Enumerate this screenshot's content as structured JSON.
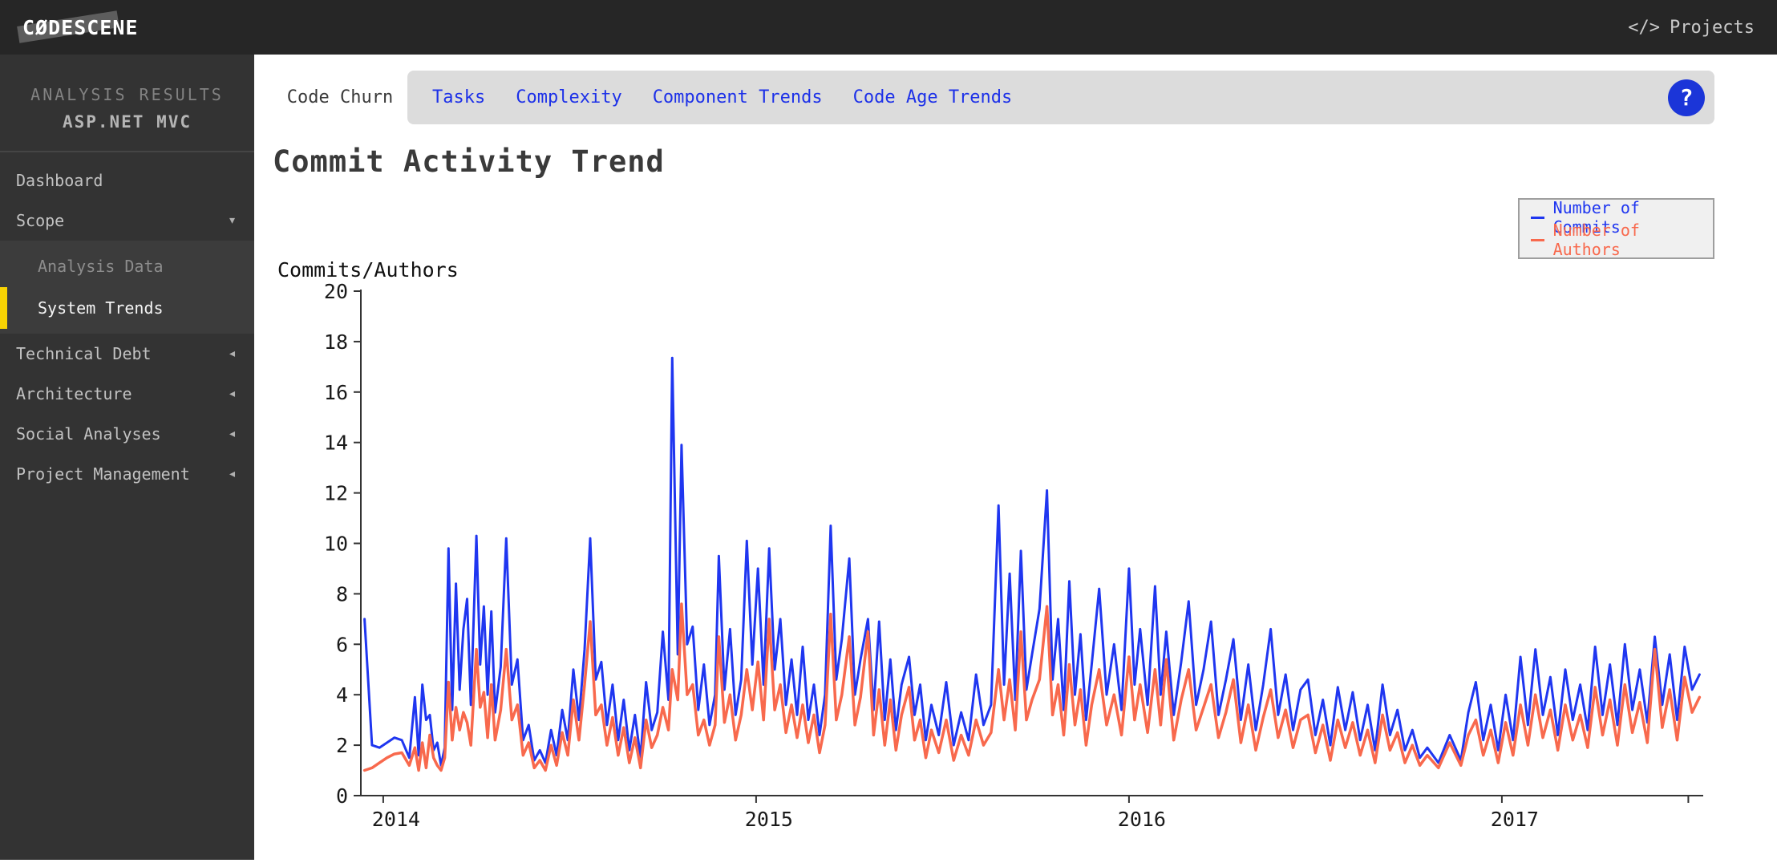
{
  "topbar": {
    "logo": "CØDESCENE",
    "projects_icon": "</>",
    "projects_label": "Projects"
  },
  "sidebar": {
    "section_label": "ANALYSIS RESULTS",
    "project_name": "ASP.NET MVC",
    "items": [
      {
        "label": "Dashboard"
      },
      {
        "label": "Scope",
        "state": "expanded",
        "children": [
          {
            "label": "Analysis Data"
          },
          {
            "label": "System Trends",
            "active": true
          }
        ]
      },
      {
        "label": "Technical Debt",
        "state": "collapsed"
      },
      {
        "label": "Architecture",
        "state": "collapsed"
      },
      {
        "label": "Social Analyses",
        "state": "collapsed"
      },
      {
        "label": "Project Management",
        "state": "collapsed"
      }
    ],
    "active_color": "#f8d303"
  },
  "tabs": {
    "active": "Code Churn",
    "items": [
      "Tasks",
      "Complexity",
      "Component Trends",
      "Code Age Trends"
    ],
    "help_label": "?",
    "link_color": "#1d31e8"
  },
  "page": {
    "title": "Commit Activity Trend"
  },
  "legend": [
    {
      "label": "Number of Commits",
      "color": "#1f36f0"
    },
    {
      "label": "Number of Authors",
      "color": "#f8694d"
    }
  ],
  "chart_data": {
    "type": "line",
    "title": "Commit Activity Trend",
    "xlabel": "",
    "ylabel": "Commits/Authors",
    "xlim": [
      2013.94,
      2017.54
    ],
    "ylim": [
      0,
      20
    ],
    "xticks": [
      2014,
      2015,
      2016,
      2017
    ],
    "yticks": [
      0,
      2,
      4,
      6,
      8,
      10,
      12,
      14,
      16,
      18,
      20
    ],
    "grid": false,
    "legend_position": "top-right",
    "x": [
      2013.95,
      2013.97,
      2013.99,
      2014.01,
      2014.03,
      2014.05,
      2014.07,
      2014.085,
      2014.095,
      2014.105,
      2014.115,
      2014.125,
      2014.135,
      2014.145,
      2014.155,
      2014.165,
      2014.175,
      2014.185,
      2014.195,
      2014.205,
      2014.215,
      2014.225,
      2014.235,
      2014.25,
      2014.26,
      2014.27,
      2014.28,
      2014.29,
      2014.3,
      2014.315,
      2014.33,
      2014.345,
      2014.36,
      2014.375,
      2014.39,
      2014.405,
      2014.42,
      2014.435,
      2014.45,
      2014.465,
      2014.48,
      2014.495,
      2014.51,
      2014.525,
      2014.54,
      2014.555,
      2014.57,
      2014.585,
      2014.6,
      2014.615,
      2014.63,
      2014.645,
      2014.66,
      2014.675,
      2014.69,
      2014.705,
      2014.72,
      2014.735,
      2014.75,
      2014.765,
      2014.775,
      2014.79,
      2014.8,
      2014.815,
      2014.83,
      2014.845,
      2014.86,
      2014.875,
      2014.89,
      2014.9,
      2014.915,
      2014.93,
      2014.945,
      2014.96,
      2014.975,
      2014.99,
      2015.005,
      2015.02,
      2015.035,
      2015.05,
      2015.065,
      2015.08,
      2015.095,
      2015.11,
      2015.125,
      2015.14,
      2015.155,
      2015.17,
      2015.185,
      2015.2,
      2015.215,
      2015.23,
      2015.25,
      2015.265,
      2015.28,
      2015.3,
      2015.315,
      2015.33,
      2015.345,
      2015.36,
      2015.375,
      2015.39,
      2015.41,
      2015.425,
      2015.44,
      2015.455,
      2015.47,
      2015.49,
      2015.51,
      2015.53,
      2015.55,
      2015.57,
      2015.59,
      2015.61,
      2015.63,
      2015.65,
      2015.665,
      2015.68,
      2015.695,
      2015.71,
      2015.725,
      2015.74,
      2015.76,
      2015.78,
      2015.795,
      2015.81,
      2015.825,
      2015.84,
      2015.855,
      2015.87,
      2015.885,
      2015.9,
      2015.92,
      2015.94,
      2015.96,
      2015.98,
      2016.0,
      2016.015,
      2016.03,
      2016.05,
      2016.07,
      2016.085,
      2016.1,
      2016.12,
      2016.14,
      2016.16,
      2016.18,
      2016.2,
      2016.22,
      2016.24,
      2016.26,
      2016.28,
      2016.3,
      2016.32,
      2016.34,
      2016.36,
      2016.38,
      2016.4,
      2016.42,
      2016.44,
      2016.46,
      2016.48,
      2016.5,
      2016.52,
      2016.54,
      2016.56,
      2016.58,
      2016.6,
      2016.62,
      2016.64,
      2016.66,
      2016.68,
      2016.7,
      2016.72,
      2016.74,
      2016.76,
      2016.78,
      2016.8,
      2016.83,
      2016.86,
      2016.89,
      2016.91,
      2016.93,
      2016.95,
      2016.97,
      2016.99,
      2017.01,
      2017.03,
      2017.05,
      2017.07,
      2017.09,
      2017.11,
      2017.13,
      2017.15,
      2017.17,
      2017.19,
      2017.21,
      2017.23,
      2017.25,
      2017.27,
      2017.29,
      2017.31,
      2017.33,
      2017.35,
      2017.37,
      2017.39,
      2017.41,
      2017.43,
      2017.45,
      2017.47,
      2017.49,
      2017.51,
      2017.53
    ],
    "series": [
      {
        "name": "Number of Commits",
        "color": "#1f36f0",
        "values": [
          7.0,
          2.0,
          1.9,
          2.1,
          2.3,
          2.2,
          1.5,
          3.9,
          1.6,
          4.4,
          3.0,
          3.2,
          1.8,
          2.1,
          1.2,
          1.9,
          9.8,
          3.4,
          8.4,
          4.2,
          6.6,
          7.8,
          3.6,
          10.3,
          5.2,
          7.5,
          4.0,
          7.3,
          3.3,
          5.1,
          10.2,
          4.4,
          5.4,
          2.2,
          2.8,
          1.4,
          1.8,
          1.3,
          2.6,
          1.6,
          3.4,
          2.2,
          5.0,
          3.0,
          5.8,
          10.2,
          4.6,
          5.3,
          2.8,
          4.4,
          2.2,
          3.8,
          1.8,
          3.2,
          1.5,
          4.5,
          2.6,
          3.3,
          6.5,
          3.8,
          17.35,
          5.6,
          13.9,
          6.0,
          6.7,
          3.4,
          5.2,
          2.8,
          4.0,
          9.5,
          4.2,
          6.6,
          3.2,
          4.6,
          10.1,
          5.2,
          9.0,
          4.4,
          9.8,
          5.0,
          7.0,
          3.6,
          5.4,
          3.2,
          5.9,
          3.0,
          4.4,
          2.4,
          4.0,
          10.7,
          4.6,
          6.2,
          9.4,
          4.0,
          5.4,
          7.0,
          3.4,
          6.9,
          3.0,
          5.4,
          2.6,
          4.4,
          5.5,
          3.2,
          4.4,
          2.2,
          3.6,
          2.4,
          4.5,
          2.0,
          3.3,
          2.2,
          4.8,
          2.8,
          3.6,
          11.5,
          4.4,
          8.8,
          3.8,
          9.7,
          4.2,
          5.6,
          7.4,
          12.1,
          4.6,
          7.0,
          3.4,
          8.5,
          4.0,
          6.4,
          3.0,
          5.2,
          8.2,
          4.0,
          6.0,
          3.4,
          9.0,
          4.4,
          6.6,
          3.6,
          8.3,
          4.0,
          6.5,
          3.2,
          5.3,
          7.7,
          3.6,
          5.0,
          6.9,
          3.2,
          4.6,
          6.2,
          3.0,
          5.2,
          2.6,
          4.4,
          6.6,
          3.2,
          4.8,
          2.6,
          4.2,
          4.6,
          2.4,
          3.8,
          2.0,
          4.3,
          2.6,
          4.1,
          2.2,
          3.6,
          1.8,
          4.4,
          2.4,
          3.4,
          1.8,
          2.6,
          1.5,
          1.9,
          1.3,
          2.4,
          1.4,
          3.3,
          4.5,
          2.2,
          3.6,
          1.8,
          4.0,
          2.2,
          5.5,
          2.8,
          5.8,
          3.2,
          4.7,
          2.4,
          5.0,
          3.0,
          4.4,
          2.6,
          5.9,
          3.2,
          5.2,
          2.8,
          6.0,
          3.4,
          5.0,
          2.9,
          6.3,
          3.6,
          5.6,
          3.0,
          5.9,
          4.2,
          4.8
        ]
      },
      {
        "name": "Number of Authors",
        "color": "#f8694d",
        "values": [
          1.0,
          1.1,
          1.3,
          1.5,
          1.65,
          1.7,
          1.2,
          1.9,
          1.0,
          2.1,
          1.1,
          2.4,
          1.5,
          1.2,
          1.0,
          1.5,
          4.5,
          2.2,
          3.5,
          2.6,
          3.3,
          2.9,
          2.0,
          5.8,
          3.5,
          4.1,
          2.3,
          4.4,
          2.2,
          3.4,
          5.8,
          3.0,
          3.6,
          1.6,
          2.1,
          1.1,
          1.4,
          1.0,
          2.0,
          1.2,
          2.5,
          1.6,
          3.8,
          2.2,
          4.4,
          6.9,
          3.2,
          3.6,
          2.0,
          3.1,
          1.6,
          2.7,
          1.3,
          2.3,
          1.1,
          3.0,
          1.9,
          2.4,
          3.5,
          2.6,
          5.0,
          3.8,
          7.6,
          4.0,
          4.4,
          2.4,
          3.0,
          2.0,
          2.8,
          6.3,
          2.9,
          4.0,
          2.2,
          3.2,
          5.0,
          3.4,
          5.3,
          3.0,
          7.0,
          3.4,
          4.4,
          2.5,
          3.6,
          2.3,
          3.6,
          2.1,
          3.2,
          1.7,
          2.8,
          7.2,
          3.0,
          4.0,
          6.3,
          2.8,
          3.9,
          6.5,
          2.4,
          4.2,
          2.0,
          3.8,
          1.8,
          3.2,
          4.3,
          2.2,
          3.0,
          1.5,
          2.6,
          1.7,
          3.0,
          1.4,
          2.4,
          1.6,
          3.0,
          2.0,
          2.5,
          5.0,
          3.0,
          4.6,
          2.6,
          6.5,
          3.0,
          3.8,
          4.6,
          7.5,
          3.2,
          4.4,
          2.4,
          5.2,
          2.8,
          4.2,
          2.0,
          3.6,
          5.0,
          2.8,
          4.0,
          2.4,
          5.5,
          3.0,
          4.4,
          2.5,
          5.0,
          2.8,
          5.4,
          2.2,
          3.8,
          5.0,
          2.6,
          3.5,
          4.4,
          2.3,
          3.3,
          4.6,
          2.1,
          3.6,
          1.8,
          3.1,
          4.2,
          2.3,
          3.4,
          1.9,
          3.0,
          3.2,
          1.7,
          2.8,
          1.4,
          3.0,
          1.9,
          2.9,
          1.6,
          2.6,
          1.3,
          3.2,
          1.8,
          2.5,
          1.3,
          2.0,
          1.2,
          1.6,
          1.1,
          2.1,
          1.2,
          2.4,
          3.0,
          1.6,
          2.6,
          1.3,
          2.9,
          1.6,
          3.6,
          2.0,
          4.0,
          2.3,
          3.4,
          1.8,
          3.6,
          2.2,
          3.2,
          1.9,
          4.3,
          2.4,
          3.8,
          2.0,
          4.4,
          2.5,
          3.7,
          2.1,
          5.8,
          2.7,
          4.2,
          2.2,
          4.7,
          3.3,
          3.9
        ]
      }
    ]
  }
}
